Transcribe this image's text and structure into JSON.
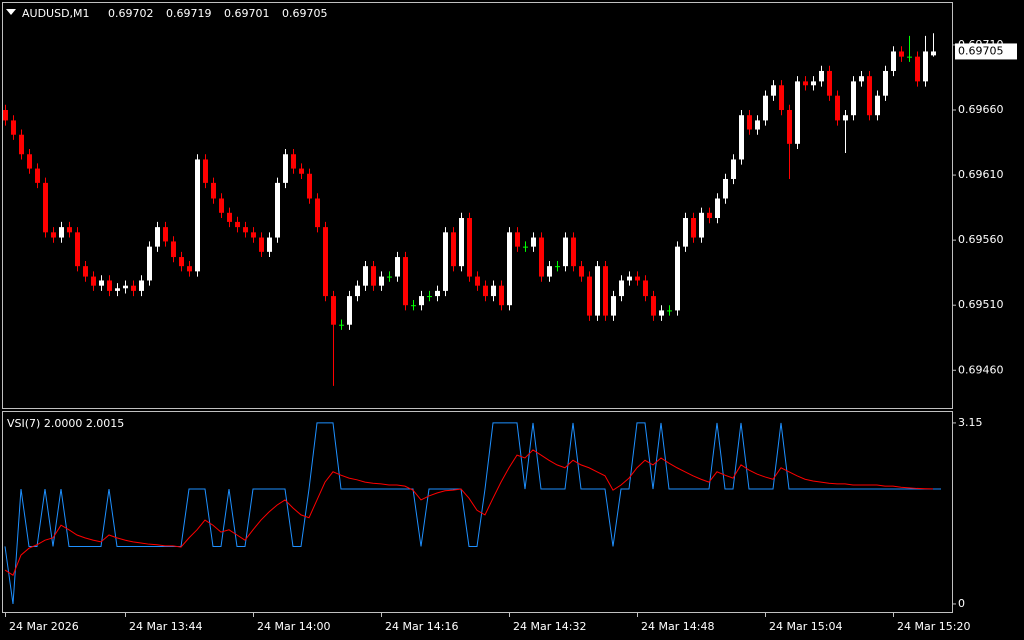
{
  "chart_data": [
    {
      "type": "candlestick",
      "title": "AUDUSD,M1",
      "categories": [
        "24 Mar 2026",
        null,
        null,
        null,
        null,
        null,
        null,
        null,
        null,
        null,
        null,
        null,
        null,
        null,
        null,
        "24 Mar 13:44",
        null,
        null,
        null,
        null,
        null,
        null,
        null,
        null,
        null,
        null,
        null,
        null,
        null,
        null,
        null,
        "24 Mar 14:00",
        null,
        null,
        null,
        null,
        null,
        null,
        null,
        null,
        null,
        null,
        null,
        null,
        null,
        null,
        null,
        "24 Mar 14:16",
        null,
        null,
        null,
        null,
        null,
        null,
        null,
        null,
        null,
        null,
        null,
        null,
        null,
        null,
        null,
        "24 Mar 14:32",
        null,
        null,
        null,
        null,
        null,
        null,
        null,
        null,
        null,
        null,
        null,
        null,
        null,
        null,
        null,
        "24 Mar 14:48",
        null,
        null,
        null,
        null,
        null,
        null,
        null,
        null,
        null,
        null,
        null,
        null,
        null,
        null,
        null,
        "24 Mar 15:04",
        null,
        null,
        null,
        null,
        null,
        null,
        null,
        null,
        null,
        null,
        null,
        null,
        null,
        null,
        null,
        "24 Mar 15:20",
        null,
        null,
        null,
        null,
        null
      ],
      "open": [
        0.6966,
        0.69652,
        0.69641,
        0.69626,
        0.69615,
        0.69604,
        0.69566,
        0.69562,
        0.6957,
        0.69566,
        0.6954,
        0.69532,
        0.69525,
        0.69529,
        0.69521,
        0.69523,
        0.69525,
        0.69521,
        0.69529,
        0.69555,
        0.6957,
        0.69559,
        0.69547,
        0.6954,
        0.69536,
        0.69622,
        0.69604,
        0.69592,
        0.69581,
        0.69574,
        0.6957,
        0.69566,
        0.69562,
        0.69551,
        0.69562,
        0.69604,
        0.69626,
        0.69615,
        0.69611,
        0.69592,
        0.6957,
        0.69517,
        0.69495,
        0.69495,
        0.69517,
        0.69525,
        0.6954,
        0.69525,
        0.69532,
        0.69532,
        0.69547,
        0.6951,
        0.6951,
        0.69517,
        0.69517,
        0.69521,
        0.69566,
        0.6954,
        0.69577,
        0.69532,
        0.69525,
        0.69517,
        0.69525,
        0.6951,
        0.69566,
        0.69555,
        0.69555,
        0.69562,
        0.69532,
        0.6954,
        0.6954,
        0.69562,
        0.6954,
        0.69532,
        0.69502,
        0.6954,
        0.69502,
        0.69517,
        0.69529,
        0.69532,
        0.69529,
        0.69517,
        0.69502,
        0.69506,
        0.69506,
        0.69555,
        0.69577,
        0.69562,
        0.69581,
        0.69577,
        0.69592,
        0.69607,
        0.69622,
        0.69656,
        0.69645,
        0.69652,
        0.69671,
        0.69679,
        0.6966,
        0.69634,
        0.69682,
        0.69679,
        0.69682,
        0.6969,
        0.69671,
        0.69652,
        0.69656,
        0.69682,
        0.69686,
        0.69656,
        0.69671,
        0.6969,
        0.69705,
        0.69701,
        0.69701,
        0.69682,
        0.69702
      ],
      "high": [
        0.69664,
        0.69656,
        0.69645,
        0.6963,
        0.69619,
        0.69608,
        0.6957,
        0.69574,
        0.69574,
        0.6957,
        0.69544,
        0.69536,
        0.69533,
        0.69533,
        0.69527,
        0.69529,
        0.69529,
        0.69533,
        0.69559,
        0.69574,
        0.69574,
        0.69563,
        0.69551,
        0.69544,
        0.69626,
        0.69626,
        0.69608,
        0.69596,
        0.69585,
        0.69578,
        0.69574,
        0.6957,
        0.69566,
        0.69566,
        0.69608,
        0.6963,
        0.6963,
        0.69619,
        0.69615,
        0.69596,
        0.69574,
        0.69521,
        0.69499,
        0.69521,
        0.69529,
        0.69544,
        0.69544,
        0.69536,
        0.69536,
        0.69551,
        0.69551,
        0.69514,
        0.69521,
        0.69521,
        0.69525,
        0.6957,
        0.6957,
        0.69581,
        0.69581,
        0.69536,
        0.69529,
        0.69529,
        0.69529,
        0.6957,
        0.6957,
        0.69559,
        0.69566,
        0.69566,
        0.69544,
        0.69544,
        0.69566,
        0.69566,
        0.69544,
        0.69536,
        0.69544,
        0.69544,
        0.69521,
        0.69533,
        0.69536,
        0.69536,
        0.69533,
        0.69521,
        0.6951,
        0.6951,
        0.69559,
        0.69581,
        0.69581,
        0.69585,
        0.69585,
        0.69596,
        0.69611,
        0.69626,
        0.6966,
        0.6966,
        0.69656,
        0.69675,
        0.69683,
        0.69683,
        0.69664,
        0.69686,
        0.69686,
        0.69686,
        0.69694,
        0.69694,
        0.69675,
        0.6966,
        0.69686,
        0.6969,
        0.6969,
        0.69675,
        0.69694,
        0.69709,
        0.69709,
        0.69717,
        0.69705,
        0.69717,
        0.69719
      ],
      "low": [
        0.69648,
        0.69637,
        0.69622,
        0.69611,
        0.696,
        0.69562,
        0.69558,
        0.69558,
        0.69562,
        0.69536,
        0.69528,
        0.69521,
        0.69521,
        0.69517,
        0.69517,
        0.69519,
        0.69517,
        0.69517,
        0.69525,
        0.69551,
        0.69555,
        0.69543,
        0.69536,
        0.69532,
        0.69532,
        0.696,
        0.69588,
        0.69577,
        0.6957,
        0.69566,
        0.69562,
        0.69558,
        0.69547,
        0.69547,
        0.69558,
        0.696,
        0.69611,
        0.69607,
        0.69588,
        0.69566,
        0.69513,
        0.69448,
        0.69491,
        0.69491,
        0.69513,
        0.69521,
        0.69521,
        0.69521,
        0.69528,
        0.69528,
        0.69506,
        0.69506,
        0.69506,
        0.69513,
        0.69513,
        0.69517,
        0.69536,
        0.69536,
        0.69528,
        0.69521,
        0.69513,
        0.69513,
        0.69506,
        0.69506,
        0.69551,
        0.69551,
        0.69551,
        0.69528,
        0.69528,
        0.69536,
        0.69536,
        0.69536,
        0.69528,
        0.69498,
        0.69498,
        0.69498,
        0.69498,
        0.69513,
        0.69525,
        0.69525,
        0.69513,
        0.69498,
        0.69498,
        0.69502,
        0.69502,
        0.69551,
        0.69558,
        0.69558,
        0.69573,
        0.69573,
        0.69588,
        0.69603,
        0.69618,
        0.69641,
        0.69641,
        0.69648,
        0.69667,
        0.69656,
        0.69607,
        0.6963,
        0.69675,
        0.69675,
        0.69678,
        0.69667,
        0.69648,
        0.69627,
        0.69652,
        0.69678,
        0.69652,
        0.69652,
        0.69667,
        0.69686,
        0.69697,
        0.69697,
        0.69678,
        0.69678,
        0.69701
      ],
      "close": [
        0.69652,
        0.69641,
        0.69626,
        0.69615,
        0.69604,
        0.69566,
        0.69562,
        0.6957,
        0.69566,
        0.6954,
        0.69532,
        0.69525,
        0.69529,
        0.69521,
        0.69523,
        0.69525,
        0.69521,
        0.69529,
        0.69555,
        0.6957,
        0.69559,
        0.69547,
        0.6954,
        0.69536,
        0.69622,
        0.69604,
        0.69592,
        0.69581,
        0.69574,
        0.6957,
        0.69566,
        0.69562,
        0.69551,
        0.69562,
        0.69604,
        0.69626,
        0.69615,
        0.69611,
        0.69592,
        0.6957,
        0.69517,
        0.69495,
        0.69495,
        0.69517,
        0.69525,
        0.6954,
        0.69525,
        0.69532,
        0.69532,
        0.69547,
        0.6951,
        0.6951,
        0.69517,
        0.69517,
        0.69521,
        0.69566,
        0.6954,
        0.69577,
        0.69532,
        0.69525,
        0.69517,
        0.69525,
        0.6951,
        0.69566,
        0.69555,
        0.69555,
        0.69562,
        0.69532,
        0.6954,
        0.6954,
        0.69562,
        0.6954,
        0.69532,
        0.69502,
        0.6954,
        0.69502,
        0.69517,
        0.69529,
        0.69532,
        0.69529,
        0.69517,
        0.69502,
        0.69506,
        0.69506,
        0.69555,
        0.69577,
        0.69562,
        0.69581,
        0.69577,
        0.69592,
        0.69607,
        0.69622,
        0.69656,
        0.69645,
        0.69652,
        0.69671,
        0.69679,
        0.6966,
        0.69634,
        0.69682,
        0.69679,
        0.69682,
        0.6969,
        0.69671,
        0.69652,
        0.69656,
        0.69682,
        0.69686,
        0.69656,
        0.69671,
        0.6969,
        0.69705,
        0.69701,
        0.69701,
        0.69682,
        0.69705,
        0.69705
      ],
      "bull_color": "#ffffff",
      "bear_color": "#ff0000",
      "doji_color": "#00ff00",
      "current_price": 0.69705,
      "ylim": [
        0.69431,
        0.69743
      ],
      "yticks": [
        {
          "value": 0.6971,
          "label": "0.69710"
        },
        {
          "value": 0.6966,
          "label": "0.69660"
        },
        {
          "value": 0.6961,
          "label": "0.69610"
        },
        {
          "value": 0.6956,
          "label": "0.69560"
        },
        {
          "value": 0.6951,
          "label": "0.69510"
        },
        {
          "value": 0.6946,
          "label": "0.69460"
        }
      ]
    },
    {
      "type": "line",
      "title": "VSI(7) 2.0000 2.0015",
      "series": [
        {
          "color": "#1e90ff",
          "values": [
            1,
            0,
            2,
            1,
            1,
            2,
            1,
            2,
            1,
            1,
            1,
            1,
            1,
            2,
            1,
            1,
            1,
            1,
            1,
            1,
            1,
            1,
            1,
            2,
            2,
            2,
            1,
            1,
            2,
            1,
            1,
            2,
            2,
            2,
            2,
            2,
            1,
            1,
            2,
            3.15,
            3.15,
            3.15,
            2,
            2,
            2,
            2,
            2,
            2,
            2,
            2,
            2,
            2,
            1,
            2,
            2,
            2,
            2,
            2,
            1,
            1,
            2,
            3.15,
            3.15,
            3.15,
            3.15,
            2,
            3.15,
            2,
            2,
            2,
            2,
            3.15,
            2,
            2,
            2,
            2,
            1,
            2,
            2,
            3.15,
            3.15,
            2,
            3.15,
            2,
            2,
            2,
            2,
            2,
            2,
            3.15,
            2,
            2,
            3.15,
            2,
            2,
            2,
            2,
            3.15,
            2,
            2,
            2,
            2,
            2,
            2,
            2,
            2,
            2,
            2,
            2,
            2,
            2,
            2,
            2,
            2,
            2,
            2,
            2,
            2
          ]
        },
        {
          "color": "#ff0000",
          "values": [
            0.59,
            0.5,
            0.85,
            0.97,
            1.03,
            1.11,
            1.15,
            1.37,
            1.29,
            1.2,
            1.15,
            1.11,
            1.08,
            1.2,
            1.15,
            1.11,
            1.08,
            1.06,
            1.04,
            1.03,
            1.01,
            1.01,
            0.99,
            1.15,
            1.29,
            1.46,
            1.37,
            1.25,
            1.29,
            1.2,
            1.11,
            1.29,
            1.46,
            1.6,
            1.72,
            1.81,
            1.67,
            1.55,
            1.5,
            1.81,
            2.12,
            2.3,
            2.24,
            2.19,
            2.16,
            2.12,
            2.1,
            2.09,
            2.07,
            2.07,
            2.05,
            1.98,
            1.81,
            1.88,
            1.93,
            1.97,
            1.98,
            2.0,
            1.84,
            1.63,
            1.55,
            1.84,
            2.12,
            2.37,
            2.59,
            2.54,
            2.68,
            2.59,
            2.5,
            2.42,
            2.37,
            2.5,
            2.42,
            2.37,
            2.3,
            2.23,
            1.98,
            2.07,
            2.19,
            2.37,
            2.5,
            2.42,
            2.54,
            2.45,
            2.37,
            2.3,
            2.23,
            2.17,
            2.12,
            2.3,
            2.24,
            2.19,
            2.42,
            2.33,
            2.26,
            2.21,
            2.17,
            2.37,
            2.3,
            2.23,
            2.17,
            2.14,
            2.12,
            2.1,
            2.09,
            2.09,
            2.07,
            2.07,
            2.07,
            2.07,
            2.05,
            2.05,
            2.03,
            2.02,
            2.01,
            2.005,
            2.0015
          ]
        }
      ],
      "ylim": [
        -0.14,
        3.34
      ],
      "yticks": [
        3.15,
        0
      ]
    }
  ]
}
